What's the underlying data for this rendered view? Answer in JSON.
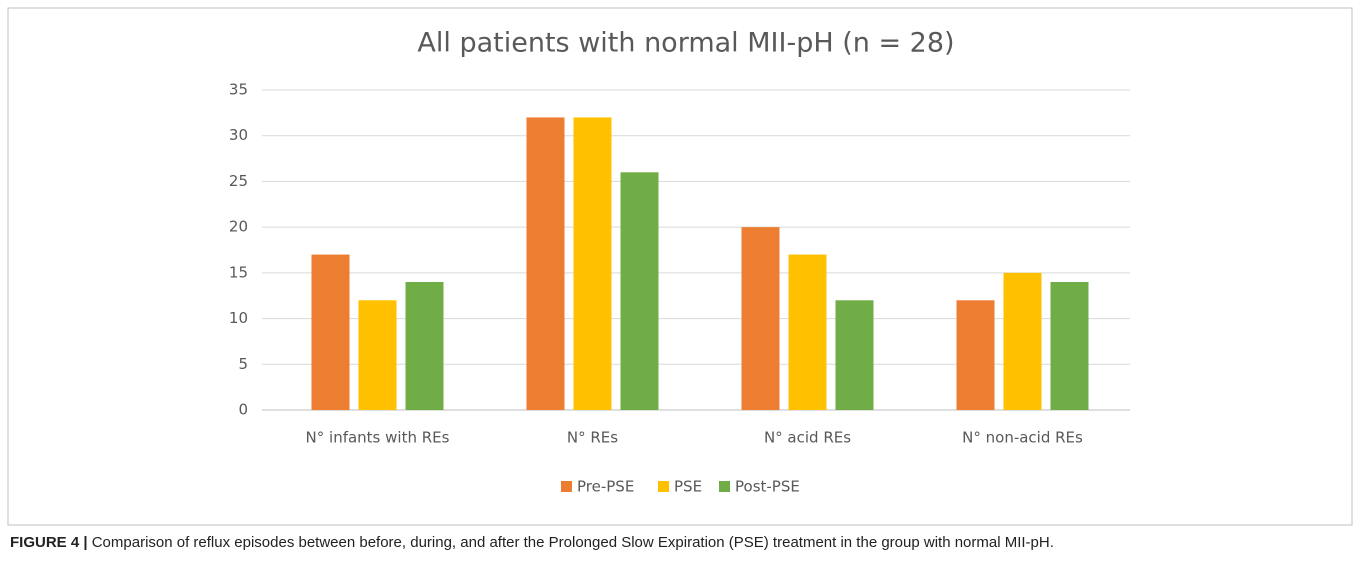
{
  "chart_data": {
    "type": "bar",
    "title": "All patients with normal MII-pH (n = 28)",
    "categories": [
      "N° infants with REs",
      "N° REs",
      "N° acid REs",
      "N° non-acid REs"
    ],
    "series": [
      {
        "name": "Pre-PSE",
        "color": "#ED7D31",
        "values": [
          17,
          32,
          20,
          12
        ]
      },
      {
        "name": "PSE",
        "color": "#FFC000",
        "values": [
          12,
          32,
          17,
          15
        ]
      },
      {
        "name": "Post-PSE",
        "color": "#70AD47",
        "values": [
          14,
          26,
          12,
          14
        ]
      }
    ],
    "ylim": [
      0,
      35
    ],
    "yticks": [
      0,
      5,
      10,
      15,
      20,
      25,
      30,
      35
    ],
    "grid": true,
    "legend": "bottom"
  },
  "caption": {
    "label": "FIGURE 4 |",
    "text": "Comparison of reflux episodes between before, during, and after the Prolonged Slow Expiration (PSE) treatment in the group with normal MII-pH."
  }
}
